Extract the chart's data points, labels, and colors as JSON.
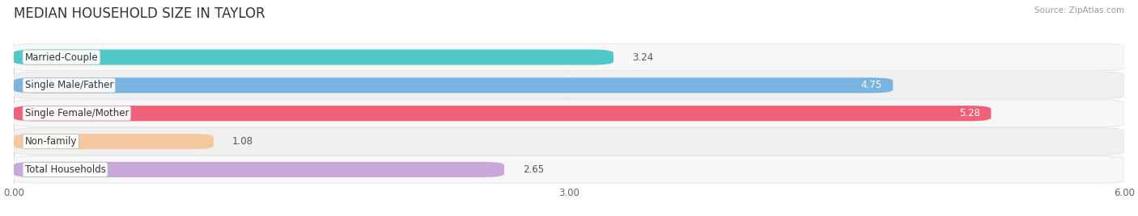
{
  "title": "MEDIAN HOUSEHOLD SIZE IN TAYLOR",
  "source": "Source: ZipAtlas.com",
  "categories": [
    "Married-Couple",
    "Single Male/Father",
    "Single Female/Mother",
    "Non-family",
    "Total Households"
  ],
  "values": [
    3.24,
    4.75,
    5.28,
    1.08,
    2.65
  ],
  "bar_colors": [
    "#50c8c8",
    "#7ab4e0",
    "#f0607a",
    "#f5c8a0",
    "#c8a8d8"
  ],
  "bar_bg_colors": [
    "#eeeeee",
    "#eeeeee",
    "#eeeeee",
    "#eeeeee",
    "#eeeeee"
  ],
  "xlim": [
    0,
    6.0
  ],
  "xticks": [
    0.0,
    3.0,
    6.0
  ],
  "xtick_labels": [
    "0.00",
    "3.00",
    "6.00"
  ],
  "background_color": "#ffffff",
  "title_fontsize": 12,
  "bar_height": 0.55,
  "label_fontsize": 8.5,
  "value_fontsize": 8.5,
  "value_inside_threshold": 4.5,
  "row_bg_colors": [
    "#f7f7f7",
    "#f0f0f0",
    "#f7f7f7",
    "#f0f0f0",
    "#f7f7f7"
  ]
}
